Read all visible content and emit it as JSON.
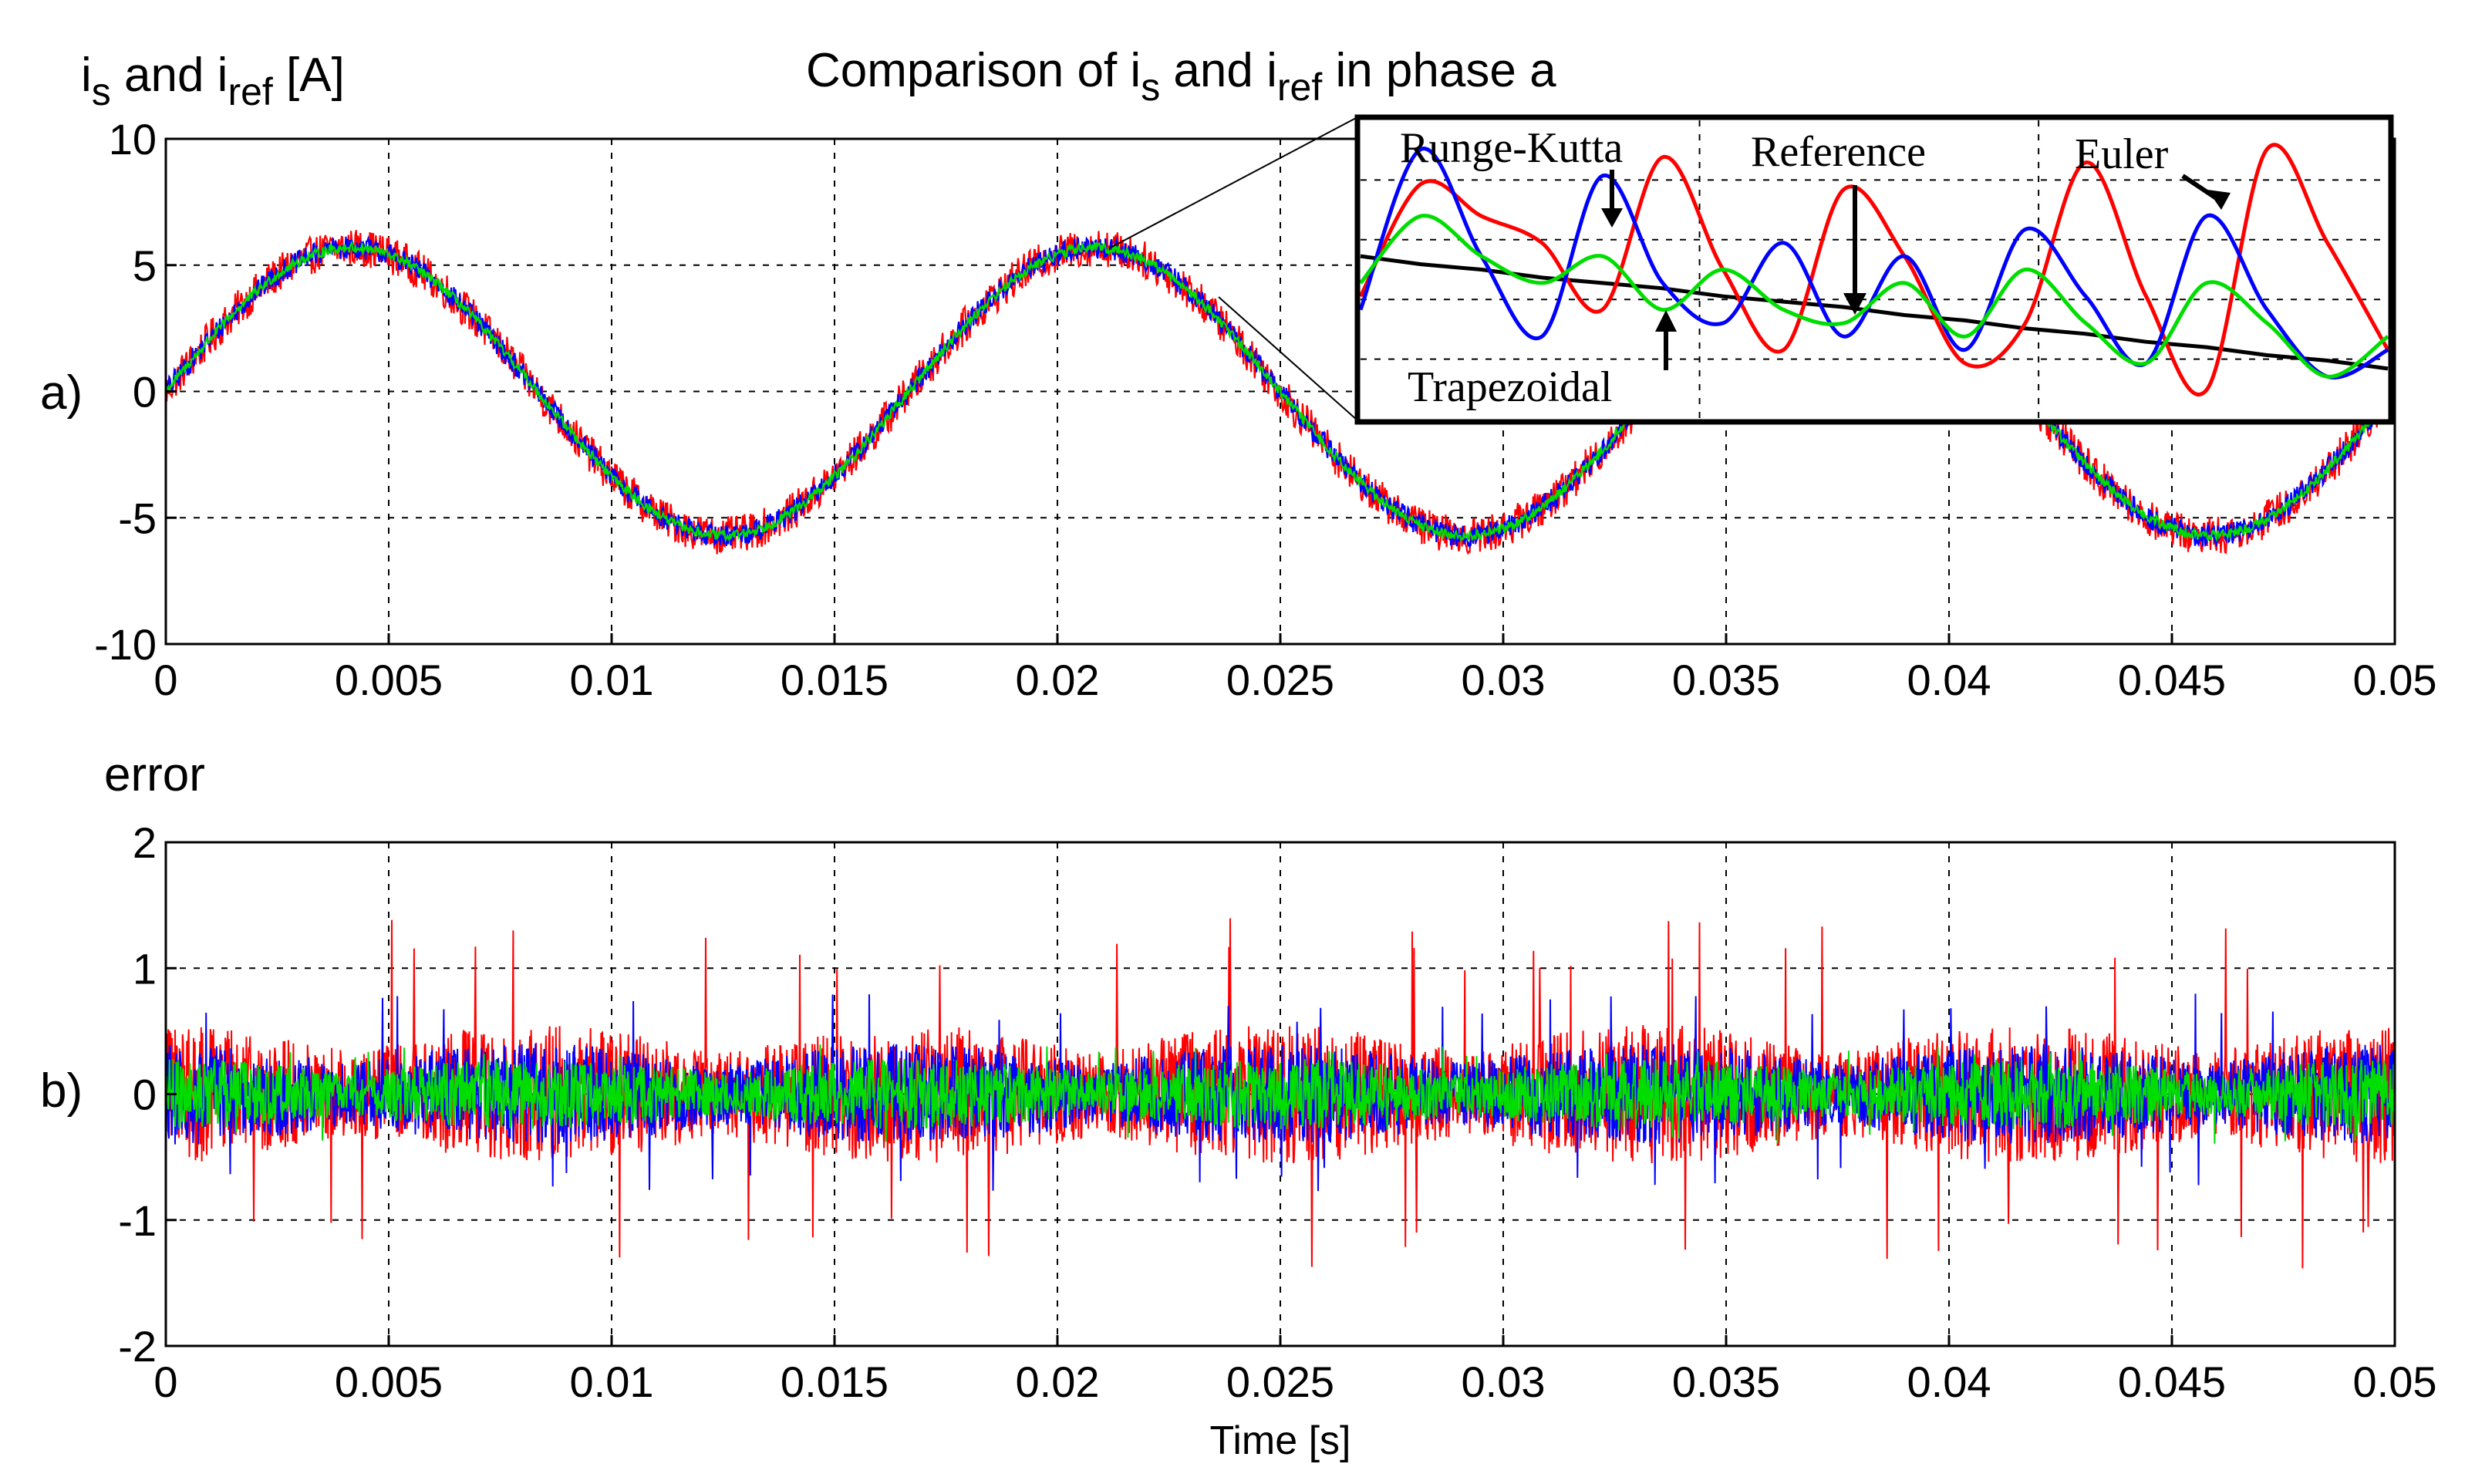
{
  "chart_data": [
    {
      "type": "line",
      "panel_label": "a)",
      "title_parts": [
        "Comparison of i",
        "s",
        " and i",
        "ref",
        " in phase a"
      ],
      "ylabel_parts": [
        "i",
        "s",
        " and i",
        "ref",
        " [A]"
      ],
      "xlabel": "",
      "xlim": [
        0,
        0.05
      ],
      "ylim": [
        -10,
        10
      ],
      "xticks": [
        0,
        0.005,
        0.01,
        0.015,
        0.02,
        0.025,
        0.03,
        0.035,
        0.04,
        0.045,
        0.05
      ],
      "xtick_labels": [
        "0",
        "0.005",
        "0.01",
        "0.015",
        "0.02",
        "0.025",
        "0.03",
        "0.035",
        "0.04",
        "0.045",
        "0.05"
      ],
      "yticks": [
        -10,
        -5,
        0,
        5,
        10
      ],
      "ytick_labels": [
        "-10",
        "-5",
        "0",
        "5",
        "10"
      ],
      "grid": true,
      "signal": {
        "amplitude": 5.7,
        "frequency_hz": 60,
        "phase": 0
      },
      "series": [
        {
          "name": "Euler",
          "color": "#ff0000",
          "noise_amplitude": 0.75
        },
        {
          "name": "Runge-Kutta",
          "color": "#0000ff",
          "noise_amplitude": 0.45
        },
        {
          "name": "Trapezoidal",
          "color": "#00dd00",
          "noise_amplitude": 0.2
        }
      ],
      "inset": {
        "labels": {
          "runge_kutta": "Runge-Kutta",
          "reference": "Reference",
          "euler": "Euler",
          "trapezoidal": "Trapezoidal"
        },
        "series": [
          {
            "name": "Reference",
            "color": "#000000",
            "values": [
              0.55,
              0.52,
              0.5,
              0.47,
              0.45,
              0.43,
              0.4,
              0.38,
              0.36,
              0.33,
              0.31,
              0.28,
              0.26,
              0.23,
              0.21,
              0.18,
              0.16,
              0.13
            ]
          },
          {
            "name": "Euler",
            "color": "#ff0000",
            "values": [
              0.4,
              0.82,
              0.7,
              0.6,
              0.35,
              0.92,
              0.5,
              0.2,
              0.8,
              0.55,
              0.15,
              0.3,
              0.9,
              0.4,
              0.05,
              0.95,
              0.6,
              0.2
            ]
          },
          {
            "name": "Runge-Kutta",
            "color": "#0000ff",
            "values": [
              0.35,
              0.95,
              0.55,
              0.25,
              0.85,
              0.45,
              0.3,
              0.6,
              0.25,
              0.55,
              0.2,
              0.65,
              0.4,
              0.15,
              0.7,
              0.35,
              0.1,
              0.2
            ]
          },
          {
            "name": "Trapezoidal",
            "color": "#00dd00",
            "values": [
              0.45,
              0.7,
              0.55,
              0.45,
              0.55,
              0.35,
              0.5,
              0.35,
              0.3,
              0.45,
              0.25,
              0.5,
              0.3,
              0.15,
              0.45,
              0.3,
              0.1,
              0.25
            ]
          }
        ]
      }
    },
    {
      "type": "line",
      "panel_label": "b)",
      "ylabel": "error",
      "xlabel": "Time [s]",
      "xlim": [
        0,
        0.05
      ],
      "ylim": [
        -2,
        2
      ],
      "xticks": [
        0,
        0.005,
        0.01,
        0.015,
        0.02,
        0.025,
        0.03,
        0.035,
        0.04,
        0.045,
        0.05
      ],
      "xtick_labels": [
        "0",
        "0.005",
        "0.01",
        "0.015",
        "0.02",
        "0.025",
        "0.03",
        "0.035",
        "0.04",
        "0.045",
        "0.05"
      ],
      "yticks": [
        -2,
        -1,
        0,
        1,
        2
      ],
      "ytick_labels": [
        "-2",
        "-1",
        "0",
        "1",
        "2"
      ],
      "grid": true,
      "series": [
        {
          "name": "Euler",
          "color": "#ff0000",
          "amplitude": 0.55,
          "peak": 1.4
        },
        {
          "name": "Runge-Kutta",
          "color": "#0000ff",
          "amplitude": 0.4,
          "peak": 0.8
        },
        {
          "name": "Trapezoidal",
          "color": "#00dd00",
          "amplitude": 0.28,
          "peak": 0.4
        }
      ]
    }
  ]
}
